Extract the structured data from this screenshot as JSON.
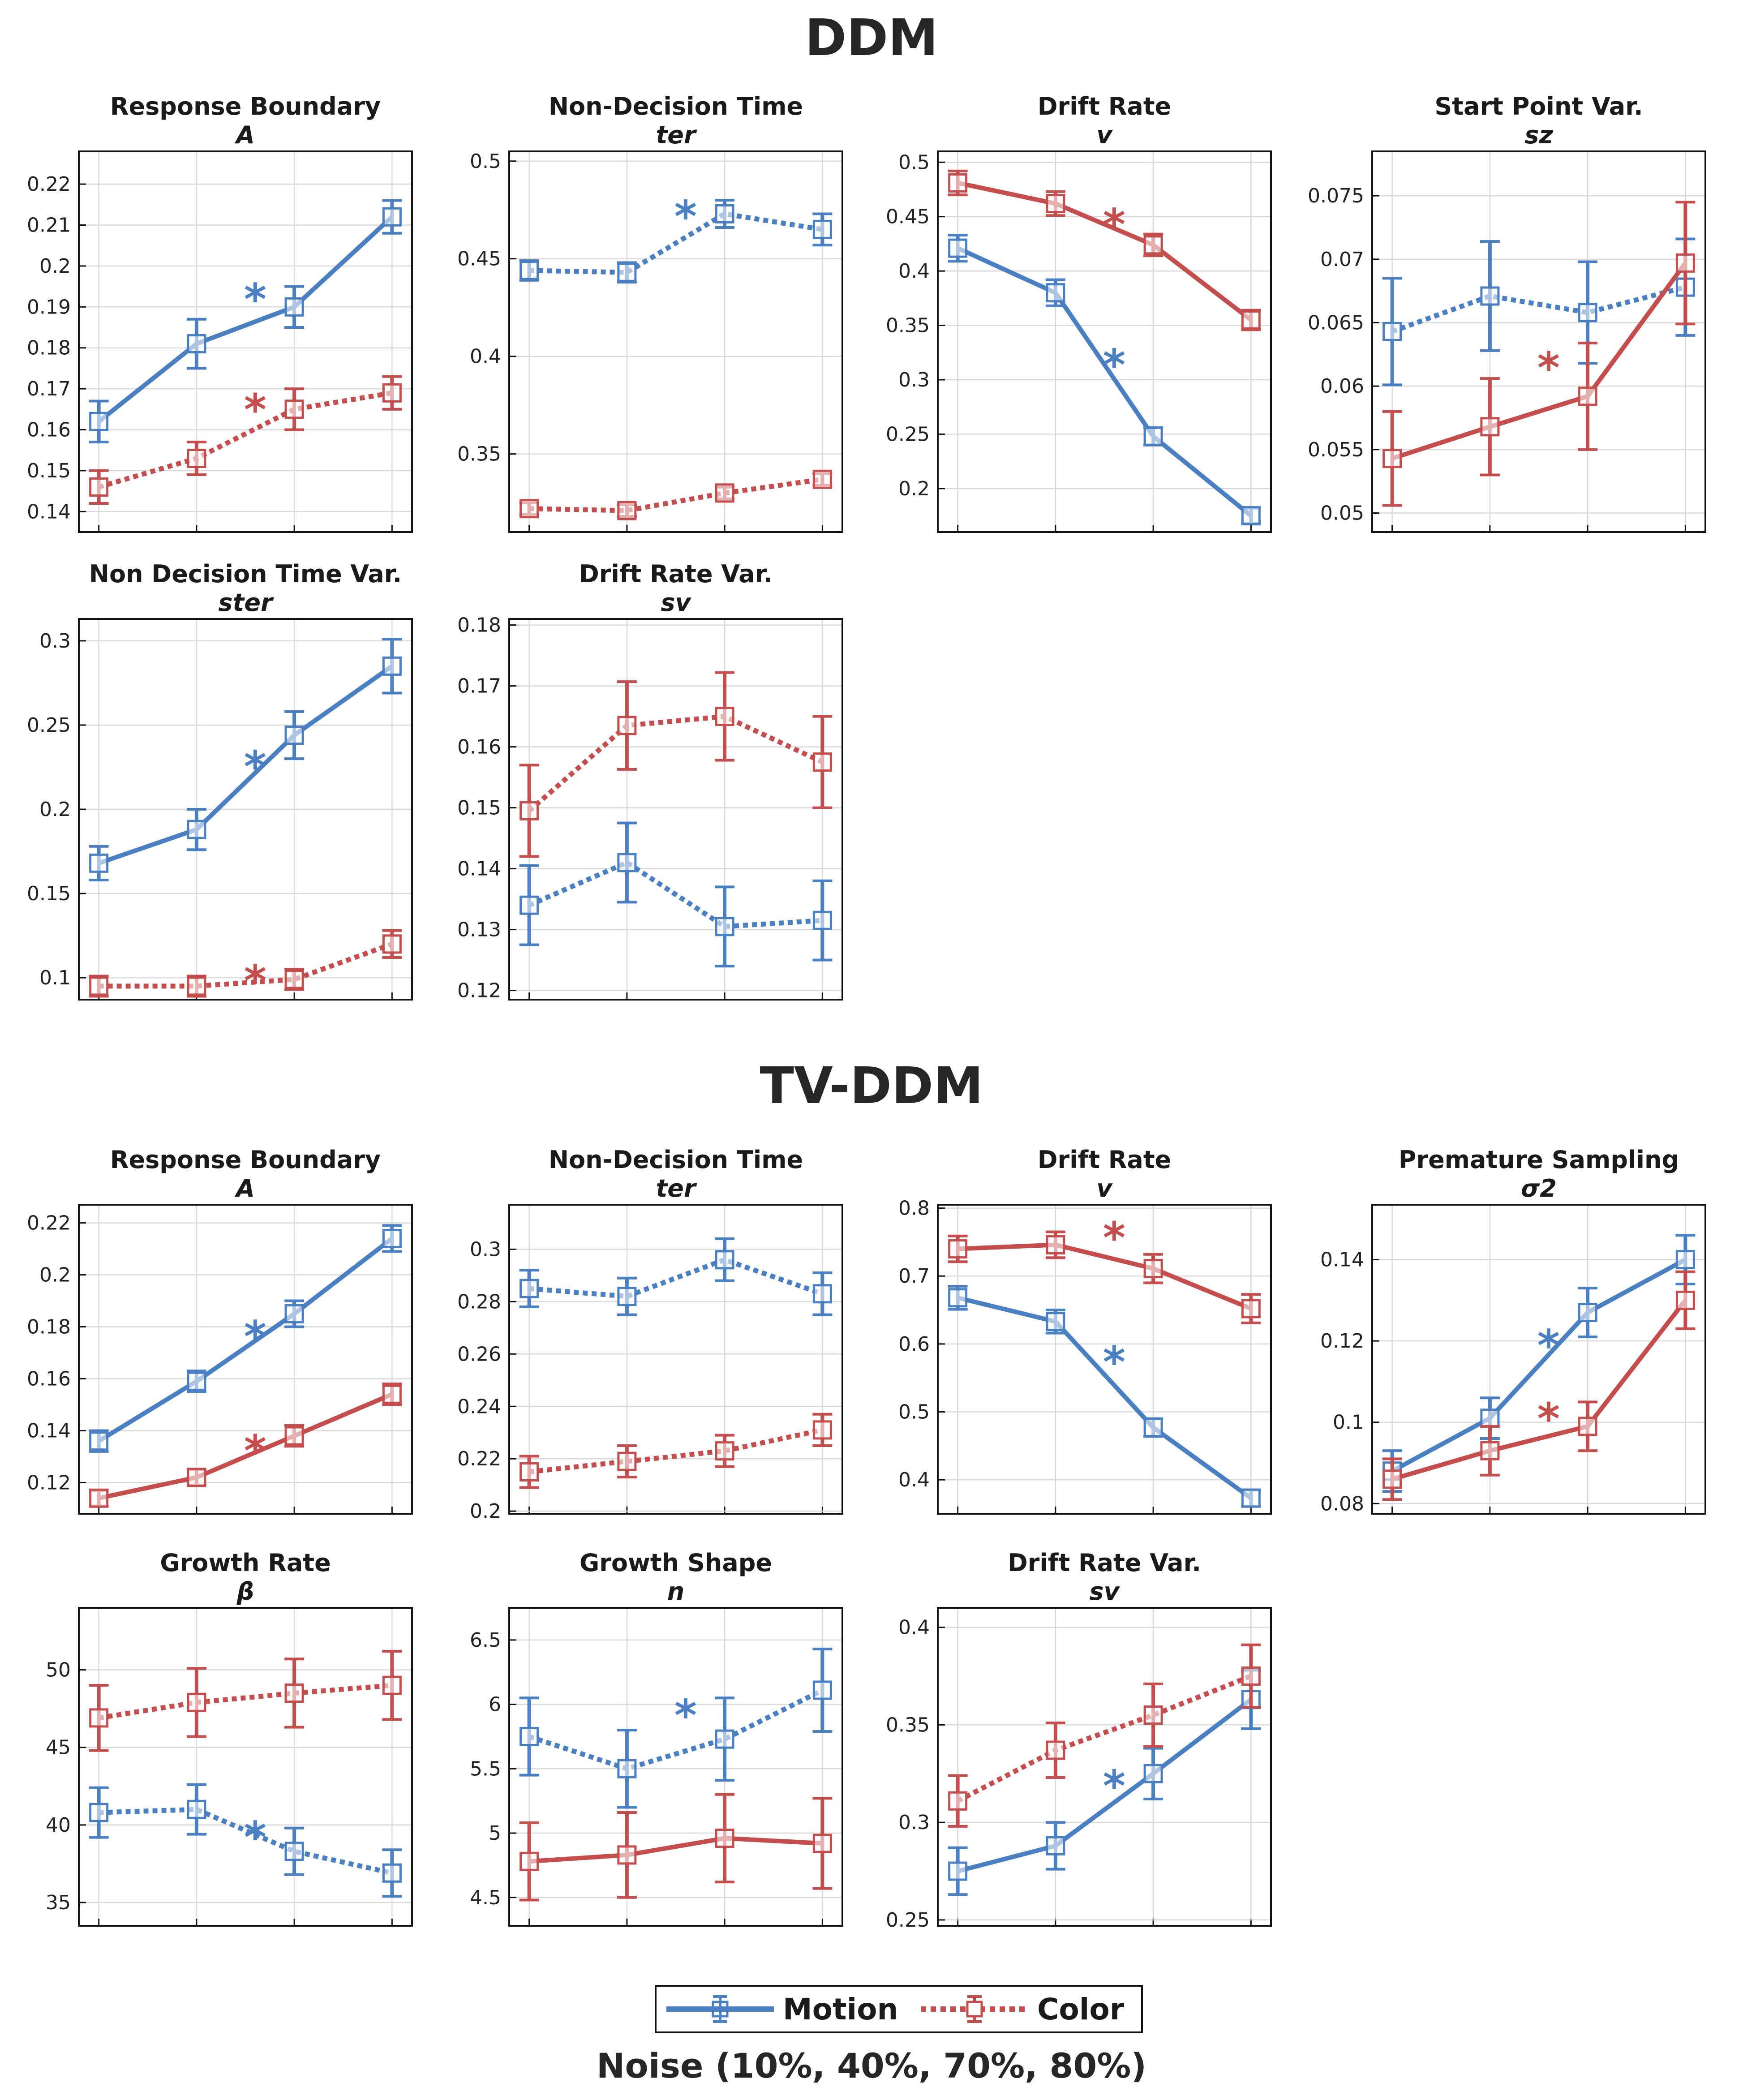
{
  "sections": {
    "ddm_title": "DDM",
    "tvddm_title": "TV-DDM"
  },
  "legend": {
    "motion_label": "Motion",
    "color_label": "Color"
  },
  "xlabel": "Noise (10%, 40%, 70%, 80%)",
  "colors": {
    "motion": "#4a7fc1",
    "color": "#c44e4e"
  },
  "chart_data": [
    {
      "type": "line",
      "section": "DDM",
      "title": "Response Boundary",
      "subtitle": "A",
      "x": [
        10,
        40,
        70,
        80
      ],
      "ylim": [
        0.135,
        0.228
      ],
      "yticks": [
        0.14,
        0.15,
        0.16,
        0.17,
        0.18,
        0.19,
        0.2,
        0.21,
        0.22
      ],
      "ytick_labels": [
        "0.14",
        "0.15",
        "0.16",
        "0.17",
        "0.18",
        "0.19",
        "0.2",
        "0.21",
        "0.22"
      ],
      "series": [
        {
          "name": "Motion",
          "style": "solid",
          "values": [
            0.162,
            0.181,
            0.19,
            0.212
          ],
          "err": [
            0.005,
            0.006,
            0.005,
            0.004
          ]
        },
        {
          "name": "Color",
          "style": "dotted",
          "values": [
            0.146,
            0.153,
            0.165,
            0.169
          ],
          "err": [
            0.004,
            0.004,
            0.005,
            0.004
          ]
        }
      ],
      "annotations": [
        {
          "text": "*",
          "series": "Motion",
          "x_pos": 1.6,
          "y": 0.193
        },
        {
          "text": "*",
          "series": "Color",
          "x_pos": 1.6,
          "y": 0.166
        }
      ]
    },
    {
      "type": "line",
      "section": "DDM",
      "title": "Non-Decision Time",
      "subtitle": "ter",
      "x": [
        10,
        40,
        70,
        80
      ],
      "ylim": [
        0.31,
        0.505
      ],
      "yticks": [
        0.35,
        0.4,
        0.45,
        0.5
      ],
      "ytick_labels": [
        "0.35",
        "0.4",
        "0.45",
        "0.5"
      ],
      "series": [
        {
          "name": "Motion",
          "style": "dotted",
          "values": [
            0.444,
            0.443,
            0.473,
            0.465
          ],
          "err": [
            0.005,
            0.005,
            0.007,
            0.008
          ]
        },
        {
          "name": "Color",
          "style": "dotted",
          "values": [
            0.322,
            0.321,
            0.33,
            0.337
          ],
          "err": [
            0.003,
            0.003,
            0.003,
            0.003
          ]
        }
      ],
      "annotations": [
        {
          "text": "*",
          "series": "Motion",
          "x_pos": 1.6,
          "y": 0.474
        }
      ]
    },
    {
      "type": "line",
      "section": "DDM",
      "title": "Drift Rate",
      "subtitle": "v",
      "x": [
        10,
        40,
        70,
        80
      ],
      "ylim": [
        0.16,
        0.51
      ],
      "yticks": [
        0.2,
        0.25,
        0.3,
        0.35,
        0.4,
        0.45,
        0.5
      ],
      "ytick_labels": [
        "0.2",
        "0.25",
        "0.3",
        "0.35",
        "0.4",
        "0.45",
        "0.5"
      ],
      "series": [
        {
          "name": "Motion",
          "style": "solid",
          "values": [
            0.421,
            0.38,
            0.248,
            0.175
          ],
          "err": [
            0.012,
            0.012,
            0.008,
            0.007
          ]
        },
        {
          "name": "Color",
          "style": "solid",
          "values": [
            0.481,
            0.462,
            0.424,
            0.355
          ],
          "err": [
            0.011,
            0.011,
            0.01,
            0.009
          ]
        }
      ],
      "annotations": [
        {
          "text": "*",
          "series": "Color",
          "x_pos": 1.6,
          "y": 0.447
        },
        {
          "text": "*",
          "series": "Motion",
          "x_pos": 1.6,
          "y": 0.318
        }
      ]
    },
    {
      "type": "line",
      "section": "DDM",
      "title": "Start Point Var.",
      "subtitle": "sz",
      "x": [
        10,
        40,
        70,
        80
      ],
      "ylim": [
        0.0485,
        0.0785
      ],
      "yticks": [
        0.05,
        0.055,
        0.06,
        0.065,
        0.07,
        0.075
      ],
      "ytick_labels": [
        "0.05",
        "0.055",
        "0.06",
        "0.065",
        "0.07",
        "0.075"
      ],
      "series": [
        {
          "name": "Motion",
          "style": "dotted",
          "values": [
            0.0643,
            0.0671,
            0.0658,
            0.0678
          ],
          "err": [
            0.0042,
            0.0043,
            0.004,
            0.0038
          ]
        },
        {
          "name": "Color",
          "style": "solid",
          "values": [
            0.0543,
            0.0568,
            0.0592,
            0.0697
          ],
          "err": [
            0.0037,
            0.0038,
            0.0042,
            0.0048
          ]
        }
      ],
      "annotations": [
        {
          "text": "*",
          "series": "Color",
          "x_pos": 1.6,
          "y": 0.0618
        }
      ]
    },
    {
      "type": "line",
      "section": "DDM",
      "title": "Non Decision Time Var.",
      "subtitle": "ster",
      "x": [
        10,
        40,
        70,
        80
      ],
      "ylim": [
        0.087,
        0.313
      ],
      "yticks": [
        0.1,
        0.15,
        0.2,
        0.25,
        0.3
      ],
      "ytick_labels": [
        "0.1",
        "0.15",
        "0.2",
        "0.25",
        "0.3"
      ],
      "series": [
        {
          "name": "Motion",
          "style": "solid",
          "values": [
            0.168,
            0.188,
            0.244,
            0.285
          ],
          "err": [
            0.01,
            0.012,
            0.014,
            0.016
          ]
        },
        {
          "name": "Color",
          "style": "dotted",
          "values": [
            0.095,
            0.095,
            0.099,
            0.12
          ],
          "err": [
            0.006,
            0.006,
            0.006,
            0.008
          ]
        }
      ],
      "annotations": [
        {
          "text": "*",
          "series": "Motion",
          "x_pos": 1.6,
          "y": 0.228
        },
        {
          "text": "*",
          "series": "Color",
          "x_pos": 1.6,
          "y": 0.101
        }
      ]
    },
    {
      "type": "line",
      "section": "DDM",
      "title": "Drift Rate Var.",
      "subtitle": "sv",
      "x": [
        10,
        40,
        70,
        80
      ],
      "ylim": [
        0.1185,
        0.181
      ],
      "yticks": [
        0.12,
        0.13,
        0.14,
        0.15,
        0.16,
        0.17,
        0.18
      ],
      "ytick_labels": [
        "0.12",
        "0.13",
        "0.14",
        "0.15",
        "0.16",
        "0.17",
        "0.18"
      ],
      "series": [
        {
          "name": "Motion",
          "style": "dotted",
          "values": [
            0.134,
            0.141,
            0.1305,
            0.1315
          ],
          "err": [
            0.0065,
            0.0065,
            0.0065,
            0.0065
          ]
        },
        {
          "name": "Color",
          "style": "dotted",
          "values": [
            0.1495,
            0.1635,
            0.165,
            0.1575
          ],
          "err": [
            0.0075,
            0.0072,
            0.0072,
            0.0075
          ]
        }
      ],
      "annotations": []
    },
    {
      "type": "line",
      "section": "TV-DDM",
      "title": "Response Boundary",
      "subtitle": "A",
      "x": [
        10,
        40,
        70,
        80
      ],
      "ylim": [
        0.108,
        0.227
      ],
      "yticks": [
        0.12,
        0.14,
        0.16,
        0.18,
        0.2,
        0.22
      ],
      "ytick_labels": [
        "0.12",
        "0.14",
        "0.16",
        "0.18",
        "0.2",
        "0.22"
      ],
      "series": [
        {
          "name": "Motion",
          "style": "solid",
          "values": [
            0.136,
            0.159,
            0.185,
            0.214
          ],
          "err": [
            0.004,
            0.004,
            0.005,
            0.005
          ]
        },
        {
          "name": "Color",
          "style": "solid",
          "values": [
            0.114,
            0.122,
            0.138,
            0.154
          ],
          "err": [
            0.003,
            0.003,
            0.004,
            0.004
          ]
        }
      ],
      "annotations": [
        {
          "text": "*",
          "series": "Motion",
          "x_pos": 1.6,
          "y": 0.178
        },
        {
          "text": "*",
          "series": "Color",
          "x_pos": 1.6,
          "y": 0.134
        }
      ]
    },
    {
      "type": "line",
      "section": "TV-DDM",
      "title": "Non-Decision Time",
      "subtitle": "ter",
      "x": [
        10,
        40,
        70,
        80
      ],
      "ylim": [
        0.199,
        0.317
      ],
      "yticks": [
        0.2,
        0.22,
        0.24,
        0.26,
        0.28,
        0.3
      ],
      "ytick_labels": [
        "0.2",
        "0.22",
        "0.24",
        "0.26",
        "0.28",
        "0.3"
      ],
      "series": [
        {
          "name": "Motion",
          "style": "dotted",
          "values": [
            0.285,
            0.282,
            0.296,
            0.283
          ],
          "err": [
            0.007,
            0.007,
            0.008,
            0.008
          ]
        },
        {
          "name": "Color",
          "style": "dotted",
          "values": [
            0.215,
            0.219,
            0.223,
            0.231
          ],
          "err": [
            0.006,
            0.006,
            0.006,
            0.006
          ]
        }
      ],
      "annotations": []
    },
    {
      "type": "line",
      "section": "TV-DDM",
      "title": "Drift Rate",
      "subtitle": "v",
      "x": [
        10,
        40,
        70,
        80
      ],
      "ylim": [
        0.35,
        0.805
      ],
      "yticks": [
        0.4,
        0.5,
        0.6,
        0.7,
        0.8
      ],
      "ytick_labels": [
        "0.4",
        "0.5",
        "0.6",
        "0.7",
        "0.8"
      ],
      "series": [
        {
          "name": "Motion",
          "style": "solid",
          "values": [
            0.668,
            0.633,
            0.477,
            0.373
          ],
          "err": [
            0.017,
            0.017,
            0.013,
            0.012
          ]
        },
        {
          "name": "Color",
          "style": "solid",
          "values": [
            0.74,
            0.746,
            0.711,
            0.652
          ],
          "err": [
            0.019,
            0.019,
            0.021,
            0.021
          ]
        }
      ],
      "annotations": [
        {
          "text": "*",
          "series": "Color",
          "x_pos": 1.6,
          "y": 0.763
        },
        {
          "text": "*",
          "series": "Motion",
          "x_pos": 1.6,
          "y": 0.58
        }
      ]
    },
    {
      "type": "line",
      "section": "TV-DDM",
      "title": "Premature Sampling",
      "subtitle": "σ2",
      "x": [
        10,
        40,
        70,
        80
      ],
      "ylim": [
        0.0775,
        0.1535
      ],
      "yticks": [
        0.08,
        0.1,
        0.12,
        0.14
      ],
      "ytick_labels": [
        "0.08",
        "0.1",
        "0.12",
        "0.14"
      ],
      "series": [
        {
          "name": "Motion",
          "style": "solid",
          "values": [
            0.088,
            0.101,
            0.127,
            0.14
          ],
          "err": [
            0.005,
            0.005,
            0.006,
            0.006
          ]
        },
        {
          "name": "Color",
          "style": "solid",
          "values": [
            0.086,
            0.093,
            0.099,
            0.13
          ],
          "err": [
            0.005,
            0.006,
            0.006,
            0.007
          ]
        }
      ],
      "annotations": [
        {
          "text": "*",
          "series": "Motion",
          "x_pos": 1.6,
          "y": 0.12
        },
        {
          "text": "*",
          "series": "Color",
          "x_pos": 1.6,
          "y": 0.102
        }
      ]
    },
    {
      "type": "line",
      "section": "TV-DDM",
      "title": "Growth Rate",
      "subtitle": "β",
      "x": [
        10,
        40,
        70,
        80
      ],
      "ylim": [
        33.5,
        54.0
      ],
      "yticks": [
        35,
        40,
        45,
        50
      ],
      "ytick_labels": [
        "35",
        "40",
        "45",
        "50"
      ],
      "series": [
        {
          "name": "Motion",
          "style": "dotted",
          "values": [
            40.8,
            41.0,
            38.3,
            36.9
          ],
          "err": [
            1.6,
            1.6,
            1.5,
            1.5
          ]
        },
        {
          "name": "Color",
          "style": "dotted",
          "values": [
            46.9,
            47.9,
            48.5,
            49.0
          ],
          "err": [
            2.1,
            2.2,
            2.2,
            2.2
          ]
        }
      ],
      "annotations": [
        {
          "text": "*",
          "series": "Motion",
          "x_pos": 1.6,
          "y": 39.5
        }
      ]
    },
    {
      "type": "line",
      "section": "TV-DDM",
      "title": "Growth Shape",
      "subtitle": "n",
      "x": [
        10,
        40,
        70,
        80
      ],
      "ylim": [
        4.28,
        6.75
      ],
      "yticks": [
        4.5,
        5,
        5.5,
        6,
        6.5
      ],
      "ytick_labels": [
        "4.5",
        "5",
        "5.5",
        "6",
        "6.5"
      ],
      "series": [
        {
          "name": "Motion",
          "style": "dotted",
          "values": [
            5.75,
            5.5,
            5.73,
            6.11
          ],
          "err": [
            0.3,
            0.3,
            0.32,
            0.32
          ]
        },
        {
          "name": "Color",
          "style": "solid",
          "values": [
            4.78,
            4.83,
            4.96,
            4.92
          ],
          "err": [
            0.3,
            0.33,
            0.34,
            0.35
          ]
        }
      ],
      "annotations": [
        {
          "text": "*",
          "series": "Motion",
          "x_pos": 1.6,
          "y": 5.95
        }
      ]
    },
    {
      "type": "line",
      "section": "TV-DDM",
      "title": "Drift Rate Var.",
      "subtitle": "sv",
      "x": [
        10,
        40,
        70,
        80
      ],
      "ylim": [
        0.247,
        0.41
      ],
      "yticks": [
        0.25,
        0.3,
        0.35,
        0.4
      ],
      "ytick_labels": [
        "0.25",
        "0.3",
        "0.35",
        "0.4"
      ],
      "series": [
        {
          "name": "Motion",
          "style": "solid",
          "values": [
            0.275,
            0.288,
            0.325,
            0.363
          ],
          "err": [
            0.012,
            0.012,
            0.013,
            0.015
          ]
        },
        {
          "name": "Color",
          "style": "dotted",
          "values": [
            0.311,
            0.337,
            0.355,
            0.375
          ],
          "err": [
            0.013,
            0.014,
            0.016,
            0.016
          ]
        }
      ],
      "annotations": [
        {
          "text": "*",
          "series": "Motion",
          "x_pos": 1.6,
          "y": 0.321
        }
      ]
    }
  ]
}
